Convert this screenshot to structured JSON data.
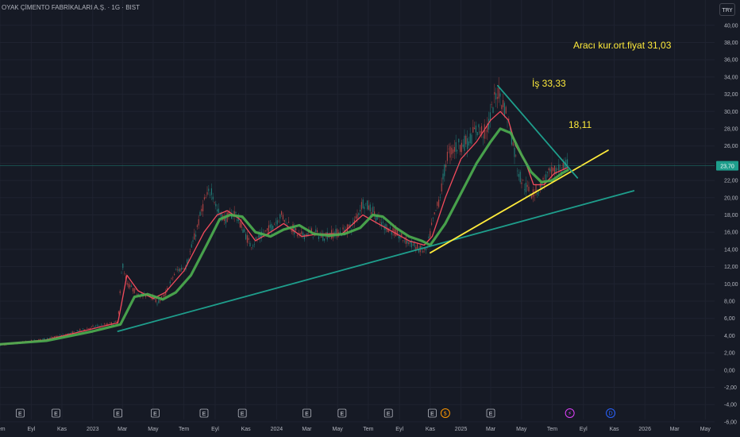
{
  "header": {
    "title": "OYAK ÇİMENTO FABRİKALARI A.Ş. · 1G · BIST",
    "currency_button": "TRY"
  },
  "annotations": [
    {
      "id": "broker-avg",
      "text": "Aracı kur.ort.fiyat 31,03"
    },
    {
      "id": "is-price",
      "text": "İş 33,33"
    },
    {
      "id": "target",
      "text": "18,11"
    }
  ],
  "event_markers": [
    {
      "type": "earnings",
      "label": "E",
      "date": "2022-08-10"
    },
    {
      "type": "earnings",
      "label": "E",
      "date": "2022-10-20"
    },
    {
      "type": "earnings",
      "label": "E",
      "date": "2023-02-20"
    },
    {
      "type": "earnings",
      "label": "E",
      "date": "2023-05-05"
    },
    {
      "type": "earnings",
      "label": "E",
      "date": "2023-08-10"
    },
    {
      "type": "earnings",
      "label": "E",
      "date": "2023-10-25"
    },
    {
      "type": "earnings",
      "label": "E",
      "date": "2024-03-01"
    },
    {
      "type": "earnings",
      "label": "E",
      "date": "2024-05-10"
    },
    {
      "type": "earnings",
      "label": "E",
      "date": "2024-08-10"
    },
    {
      "type": "earnings",
      "label": "E",
      "date": "2024-11-05"
    },
    {
      "type": "dividend",
      "label": "$",
      "date": "2024-12-01"
    },
    {
      "type": "earnings",
      "label": "E",
      "date": "2025-03-01"
    },
    {
      "type": "split",
      "label": "⚡",
      "date": "2025-08-05"
    },
    {
      "type": "dividend-upcoming",
      "label": "D",
      "date": "2025-10-25"
    }
  ],
  "colors": {
    "background": "#161a25",
    "grid": "#1f2330",
    "candle_up": "#26a69a",
    "candle_down": "#ef5350",
    "ma_fast": "#f44b5c",
    "ma_slow": "#4caf50",
    "trend_teal": "#1e9e8c",
    "trend_yellow": "#ffeb3b",
    "price_badge": "#1e9e8c",
    "annotation": "#ffeb3b",
    "axis_text": "#b2b5be"
  },
  "chart_data": {
    "type": "line",
    "title": "OYAK ÇİMENTO FABRİKALARI A.Ş. · 1G · BIST",
    "currency": "TRY",
    "current_price_label": "23,70",
    "ylim": [
      -6,
      41
    ],
    "y_ticks": [
      "-6,00",
      "-4,00",
      "-2,00",
      "0,00",
      "2,00",
      "4,00",
      "6,00",
      "8,00",
      "10,00",
      "12,00",
      "14,00",
      "16,00",
      "18,00",
      "20,00",
      "22,00",
      "24,00",
      "26,00",
      "28,00",
      "30,00",
      "32,00",
      "34,00",
      "36,00",
      "38,00",
      "40,00"
    ],
    "x_ticks": [
      {
        "label": "Tem",
        "date": "2022-07-01"
      },
      {
        "label": "Eyl",
        "date": "2022-09-01"
      },
      {
        "label": "Kas",
        "date": "2022-11-01"
      },
      {
        "label": "2023",
        "date": "2023-01-01"
      },
      {
        "label": "Mar",
        "date": "2023-03-01"
      },
      {
        "label": "May",
        "date": "2023-05-01"
      },
      {
        "label": "Tem",
        "date": "2023-07-01"
      },
      {
        "label": "Eyl",
        "date": "2023-09-01"
      },
      {
        "label": "Kas",
        "date": "2023-11-01"
      },
      {
        "label": "2024",
        "date": "2024-01-01"
      },
      {
        "label": "Mar",
        "date": "2024-03-01"
      },
      {
        "label": "May",
        "date": "2024-05-01"
      },
      {
        "label": "Tem",
        "date": "2024-07-01"
      },
      {
        "label": "Eyl",
        "date": "2024-09-01"
      },
      {
        "label": "Kas",
        "date": "2024-11-01"
      },
      {
        "label": "2025",
        "date": "2025-01-01"
      },
      {
        "label": "Mar",
        "date": "2025-03-01"
      },
      {
        "label": "May",
        "date": "2025-05-01"
      },
      {
        "label": "Tem",
        "date": "2025-07-01"
      },
      {
        "label": "Eyl",
        "date": "2025-09-01"
      },
      {
        "label": "Kas",
        "date": "2025-11-01"
      },
      {
        "label": "2026",
        "date": "2026-01-01"
      },
      {
        "label": "Mar",
        "date": "2026-03-01"
      },
      {
        "label": "May",
        "date": "2026-05-01"
      }
    ],
    "series": [
      {
        "kind": "price",
        "x": [
          "2022-07-01",
          "2022-08-15",
          "2022-10-01",
          "2022-11-15",
          "2023-01-01",
          "2023-02-01",
          "2023-02-20",
          "2023-03-01",
          "2023-03-10",
          "2023-03-25",
          "2023-04-10",
          "2023-04-25",
          "2023-05-10",
          "2023-05-25",
          "2023-06-15",
          "2023-07-05",
          "2023-07-25",
          "2023-08-10",
          "2023-08-25",
          "2023-09-05",
          "2023-09-20",
          "2023-10-10",
          "2023-10-25",
          "2023-11-10",
          "2023-12-01",
          "2023-12-20",
          "2024-01-10",
          "2024-01-25",
          "2024-02-15",
          "2024-03-10",
          "2024-04-01",
          "2024-04-20",
          "2024-05-10",
          "2024-06-01",
          "2024-06-20",
          "2024-07-10",
          "2024-07-25",
          "2024-08-10",
          "2024-09-01",
          "2024-09-20",
          "2024-10-10",
          "2024-10-25",
          "2024-11-05",
          "2024-11-20",
          "2024-12-05",
          "2024-12-25",
          "2025-01-15",
          "2025-02-01",
          "2025-02-20",
          "2025-03-05",
          "2025-03-15",
          "2025-03-25",
          "2025-04-05",
          "2025-04-15",
          "2025-04-25",
          "2025-05-05",
          "2025-05-20",
          "2025-06-05",
          "2025-06-20",
          "2025-07-05",
          "2025-07-20",
          "2025-08-01"
        ],
        "values": [
          2.9,
          3.2,
          3.6,
          4.2,
          5.0,
          5.3,
          5.6,
          12.5,
          10.0,
          9.2,
          8.6,
          8.8,
          7.8,
          8.8,
          11.5,
          12.0,
          16.0,
          19.5,
          21.0,
          18.5,
          17.5,
          18.3,
          16.5,
          14.5,
          15.5,
          16.5,
          18.0,
          17.0,
          15.5,
          16.0,
          15.5,
          15.8,
          16.0,
          16.8,
          19.5,
          18.5,
          17.0,
          16.5,
          15.5,
          14.8,
          14.0,
          13.8,
          17.0,
          20.0,
          25.0,
          26.0,
          26.5,
          28.0,
          27.5,
          30.5,
          32.5,
          31.0,
          29.0,
          26.0,
          23.0,
          21.5,
          20.5,
          21.0,
          22.5,
          23.0,
          23.5,
          23.7
        ]
      },
      {
        "kind": "ma_fast",
        "x": [
          "2022-07-01",
          "2022-10-01",
          "2023-01-01",
          "2023-02-20",
          "2023-03-10",
          "2023-04-01",
          "2023-05-01",
          "2023-05-25",
          "2023-07-01",
          "2023-08-10",
          "2023-09-05",
          "2023-09-25",
          "2023-10-20",
          "2023-11-20",
          "2023-12-20",
          "2024-01-15",
          "2024-02-20",
          "2024-03-25",
          "2024-05-10",
          "2024-06-20",
          "2024-07-20",
          "2024-08-20",
          "2024-09-20",
          "2024-10-20",
          "2024-11-05",
          "2024-12-01",
          "2025-01-01",
          "2025-02-01",
          "2025-03-01",
          "2025-03-20",
          "2025-04-05",
          "2025-04-20",
          "2025-05-10",
          "2025-05-25",
          "2025-06-15",
          "2025-07-05",
          "2025-08-01"
        ],
        "values": [
          3.0,
          3.5,
          4.8,
          5.5,
          11.0,
          9.2,
          8.3,
          9.0,
          11.5,
          16.0,
          18.0,
          18.5,
          17.5,
          15.0,
          16.0,
          17.0,
          15.5,
          15.8,
          15.8,
          18.0,
          17.0,
          16.0,
          15.0,
          14.5,
          15.5,
          20.0,
          24.5,
          26.5,
          29.0,
          30.0,
          29.0,
          26.0,
          24.0,
          21.5,
          21.5,
          22.8,
          23.5
        ]
      },
      {
        "kind": "ma_slow",
        "x": [
          "2022-07-01",
          "2022-10-01",
          "2023-01-01",
          "2023-02-25",
          "2023-03-25",
          "2023-04-20",
          "2023-05-20",
          "2023-06-15",
          "2023-07-15",
          "2023-08-15",
          "2023-09-10",
          "2023-10-01",
          "2023-10-25",
          "2023-11-20",
          "2023-12-20",
          "2024-01-15",
          "2024-02-15",
          "2024-03-15",
          "2024-04-15",
          "2024-05-15",
          "2024-06-15",
          "2024-07-10",
          "2024-07-30",
          "2024-08-25",
          "2024-09-20",
          "2024-10-15",
          "2024-11-01",
          "2024-12-01",
          "2025-01-01",
          "2025-02-01",
          "2025-03-01",
          "2025-03-20",
          "2025-04-10",
          "2025-05-01",
          "2025-05-20",
          "2025-06-10",
          "2025-07-01",
          "2025-07-20",
          "2025-08-01"
        ],
        "values": [
          3.0,
          3.4,
          4.5,
          5.3,
          8.5,
          8.8,
          8.2,
          9.0,
          11.0,
          14.5,
          17.5,
          18.0,
          17.8,
          16.0,
          15.5,
          16.3,
          16.8,
          15.8,
          15.6,
          15.8,
          16.5,
          18.0,
          17.8,
          16.5,
          15.5,
          15.0,
          14.5,
          17.0,
          20.5,
          24.0,
          26.5,
          28.0,
          27.5,
          25.0,
          23.0,
          21.8,
          22.0,
          22.8,
          23.2
        ]
      },
      {
        "kind": "trend",
        "name": "long-support",
        "x": [
          "2023-02-20",
          "2025-12-10"
        ],
        "values": [
          4.5,
          20.8
        ]
      },
      {
        "kind": "trend",
        "name": "short-support",
        "x": [
          "2024-11-01",
          "2025-10-20"
        ],
        "values": [
          13.6,
          25.5
        ]
      },
      {
        "kind": "trend",
        "name": "resistance",
        "x": [
          "2025-03-15",
          "2025-08-20"
        ],
        "values": [
          33.0,
          22.3
        ]
      }
    ]
  }
}
